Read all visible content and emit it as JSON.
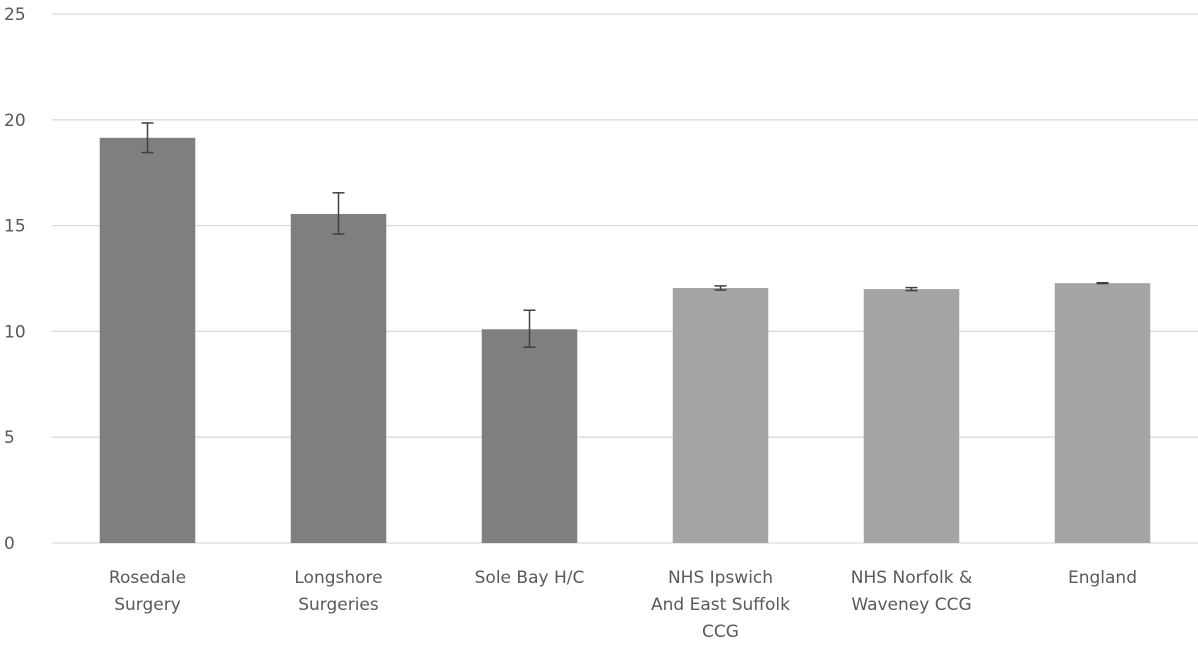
{
  "chart_data": {
    "type": "bar",
    "title": "",
    "xlabel": "",
    "ylabel": "",
    "ylim": [
      0,
      25
    ],
    "y_ticks": [
      0,
      5,
      10,
      15,
      20,
      25
    ],
    "grid": true,
    "legend": "none",
    "categories": [
      [
        "Rosedale",
        "Surgery"
      ],
      [
        "Longshore",
        "Surgeries"
      ],
      [
        "Sole Bay H/C"
      ],
      [
        "NHS Ipswich",
        "And East Suffolk",
        "CCG"
      ],
      [
        "NHS Norfolk &",
        "Waveney CCG"
      ],
      [
        "England"
      ]
    ],
    "values": [
      19.15,
      15.55,
      10.1,
      12.05,
      12.0,
      12.28
    ],
    "error_low": [
      18.45,
      14.6,
      9.25,
      11.95,
      11.93,
      12.26
    ],
    "error_high": [
      19.85,
      16.55,
      11.0,
      12.15,
      12.07,
      12.3
    ],
    "bar_colors": [
      "#7f7f7f",
      "#7f7f7f",
      "#7f7f7f",
      "#a5a5a5",
      "#a5a5a5",
      "#a5a5a5"
    ],
    "grid_color": "#d9d9d9",
    "error_color": "#404040"
  }
}
